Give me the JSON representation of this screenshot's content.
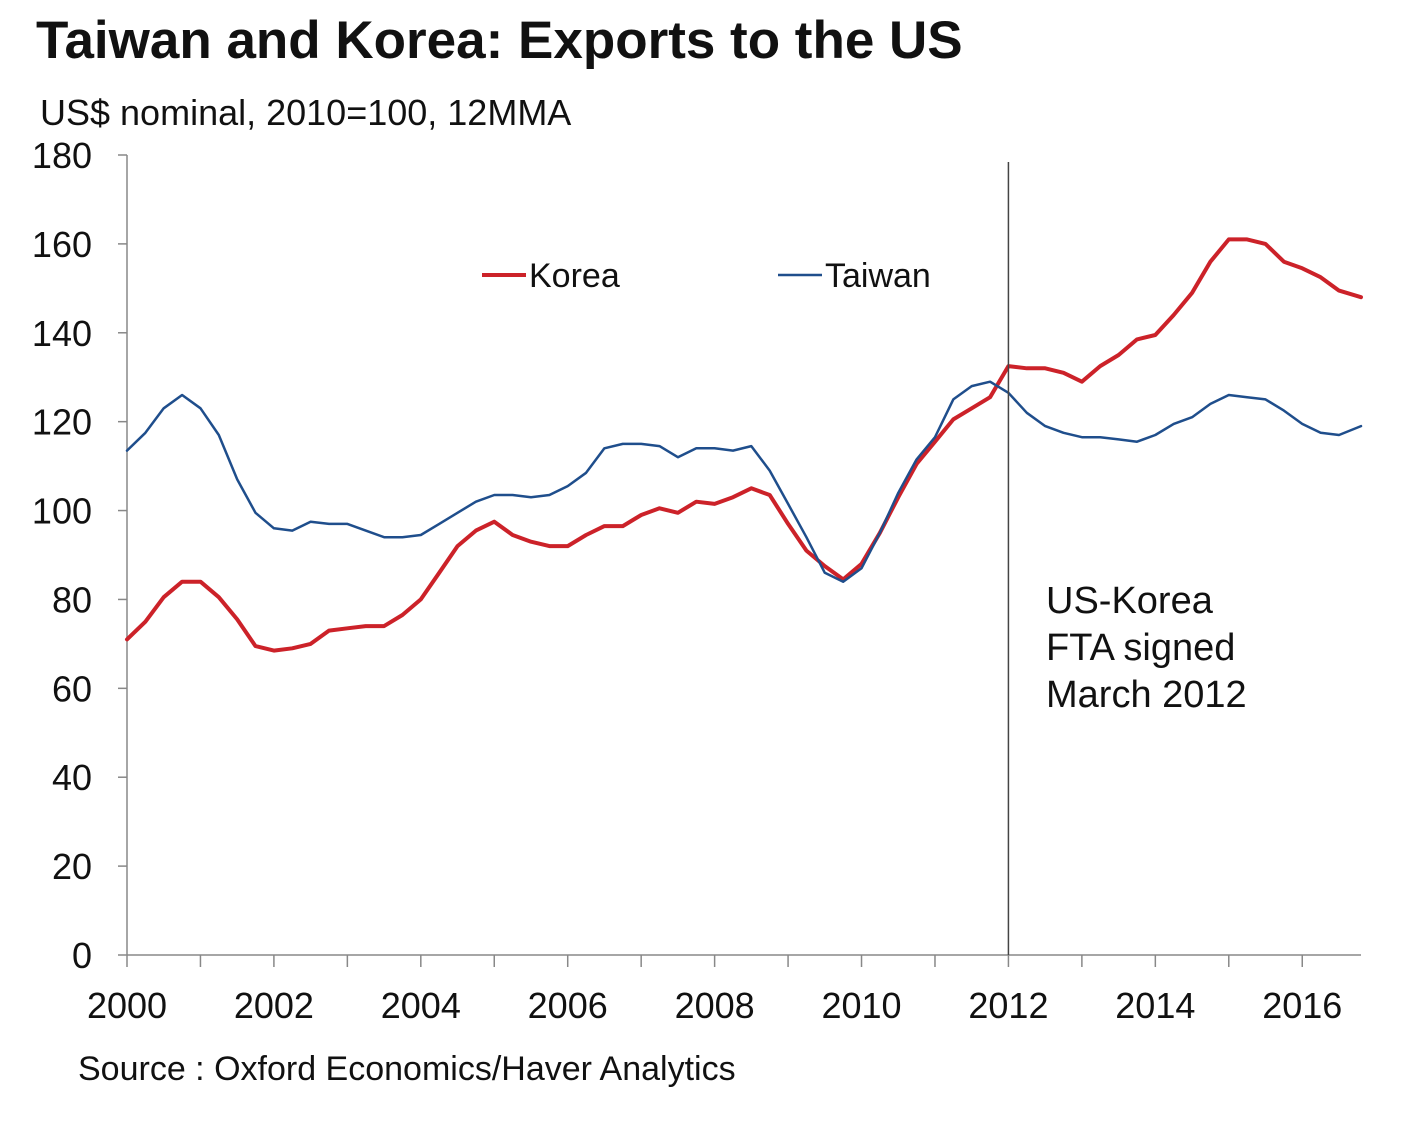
{
  "chart_data": {
    "type": "line",
    "title": "Taiwan and Korea: Exports to the US",
    "subtitle": "US$ nominal, 2010=100, 12MMA",
    "source": "Source : Oxford Economics/Haver Analytics",
    "xlim": [
      2000,
      2016.8
    ],
    "ylim": [
      0,
      180
    ],
    "yticks": [
      0,
      20,
      40,
      60,
      80,
      100,
      120,
      140,
      160,
      180
    ],
    "xtick_labels": [
      "2000",
      "2002",
      "2004",
      "2006",
      "2008",
      "2010",
      "2012",
      "2014",
      "2016"
    ],
    "xtick_values": [
      2000,
      2002,
      2004,
      2006,
      2008,
      2010,
      2012,
      2014,
      2016
    ],
    "minor_xticks": [
      2001,
      2003,
      2005,
      2007,
      2009,
      2011,
      2013,
      2015
    ],
    "grid": false,
    "legend_position": "top",
    "series": [
      {
        "name": "Korea",
        "color": "#cc2229",
        "points": [
          [
            2000.0,
            71
          ],
          [
            2000.25,
            75
          ],
          [
            2000.5,
            80.5
          ],
          [
            2000.75,
            84
          ],
          [
            2001.0,
            84
          ],
          [
            2001.25,
            80.5
          ],
          [
            2001.5,
            75.5
          ],
          [
            2001.75,
            69.5
          ],
          [
            2002.0,
            68.5
          ],
          [
            2002.25,
            69
          ],
          [
            2002.5,
            70
          ],
          [
            2002.75,
            73
          ],
          [
            2003.0,
            73.5
          ],
          [
            2003.25,
            74
          ],
          [
            2003.5,
            74
          ],
          [
            2003.75,
            76.5
          ],
          [
            2004.0,
            80
          ],
          [
            2004.25,
            86
          ],
          [
            2004.5,
            92
          ],
          [
            2004.75,
            95.5
          ],
          [
            2005.0,
            97.5
          ],
          [
            2005.25,
            94.5
          ],
          [
            2005.5,
            93
          ],
          [
            2005.75,
            92
          ],
          [
            2006.0,
            92
          ],
          [
            2006.25,
            94.5
          ],
          [
            2006.5,
            96.5
          ],
          [
            2006.75,
            96.5
          ],
          [
            2007.0,
            99
          ],
          [
            2007.25,
            100.5
          ],
          [
            2007.5,
            99.5
          ],
          [
            2007.75,
            102
          ],
          [
            2008.0,
            101.5
          ],
          [
            2008.25,
            103
          ],
          [
            2008.5,
            105
          ],
          [
            2008.75,
            103.5
          ],
          [
            2009.0,
            97
          ],
          [
            2009.25,
            91
          ],
          [
            2009.5,
            87.5
          ],
          [
            2009.75,
            84.5
          ],
          [
            2010.0,
            88
          ],
          [
            2010.25,
            95
          ],
          [
            2010.5,
            103
          ],
          [
            2010.75,
            110.5
          ],
          [
            2011.0,
            115.5
          ],
          [
            2011.25,
            120.5
          ],
          [
            2011.5,
            123
          ],
          [
            2011.75,
            125.5
          ],
          [
            2012.0,
            132.5
          ],
          [
            2012.25,
            132
          ],
          [
            2012.5,
            132
          ],
          [
            2012.75,
            131
          ],
          [
            2013.0,
            129
          ],
          [
            2013.25,
            132.5
          ],
          [
            2013.5,
            135
          ],
          [
            2013.75,
            138.5
          ],
          [
            2014.0,
            139.5
          ],
          [
            2014.25,
            144
          ],
          [
            2014.5,
            149
          ],
          [
            2014.75,
            156
          ],
          [
            2015.0,
            161
          ],
          [
            2015.25,
            161
          ],
          [
            2015.5,
            160
          ],
          [
            2015.75,
            156
          ],
          [
            2016.0,
            154.5
          ],
          [
            2016.25,
            152.5
          ],
          [
            2016.5,
            149.5
          ],
          [
            2016.8,
            148
          ]
        ]
      },
      {
        "name": "Taiwan",
        "color": "#1f4e8c",
        "points": [
          [
            2000.0,
            113.5
          ],
          [
            2000.25,
            117.5
          ],
          [
            2000.5,
            123
          ],
          [
            2000.75,
            126
          ],
          [
            2001.0,
            123
          ],
          [
            2001.25,
            117
          ],
          [
            2001.5,
            107
          ],
          [
            2001.75,
            99.5
          ],
          [
            2002.0,
            96
          ],
          [
            2002.25,
            95.5
          ],
          [
            2002.5,
            97.5
          ],
          [
            2002.75,
            97
          ],
          [
            2003.0,
            97
          ],
          [
            2003.25,
            95.5
          ],
          [
            2003.5,
            94
          ],
          [
            2003.75,
            94
          ],
          [
            2004.0,
            94.5
          ],
          [
            2004.25,
            97
          ],
          [
            2004.5,
            99.5
          ],
          [
            2004.75,
            102
          ],
          [
            2005.0,
            103.5
          ],
          [
            2005.25,
            103.5
          ],
          [
            2005.5,
            103
          ],
          [
            2005.75,
            103.5
          ],
          [
            2006.0,
            105.5
          ],
          [
            2006.25,
            108.5
          ],
          [
            2006.5,
            114
          ],
          [
            2006.75,
            115
          ],
          [
            2007.0,
            115
          ],
          [
            2007.25,
            114.5
          ],
          [
            2007.5,
            112
          ],
          [
            2007.75,
            114
          ],
          [
            2008.0,
            114
          ],
          [
            2008.25,
            113.5
          ],
          [
            2008.5,
            114.5
          ],
          [
            2008.75,
            109
          ],
          [
            2009.0,
            101.5
          ],
          [
            2009.25,
            94
          ],
          [
            2009.5,
            86
          ],
          [
            2009.75,
            84
          ],
          [
            2010.0,
            87
          ],
          [
            2010.25,
            95
          ],
          [
            2010.5,
            104
          ],
          [
            2010.75,
            111.5
          ],
          [
            2011.0,
            116.5
          ],
          [
            2011.25,
            125
          ],
          [
            2011.5,
            128
          ],
          [
            2011.75,
            129
          ],
          [
            2012.0,
            126.5
          ],
          [
            2012.25,
            122
          ],
          [
            2012.5,
            119
          ],
          [
            2012.75,
            117.5
          ],
          [
            2013.0,
            116.5
          ],
          [
            2013.25,
            116.5
          ],
          [
            2013.5,
            116
          ],
          [
            2013.75,
            115.5
          ],
          [
            2014.0,
            117
          ],
          [
            2014.25,
            119.5
          ],
          [
            2014.5,
            121
          ],
          [
            2014.75,
            124
          ],
          [
            2015.0,
            126
          ],
          [
            2015.25,
            125.5
          ],
          [
            2015.5,
            125
          ],
          [
            2015.75,
            122.5
          ],
          [
            2016.0,
            119.5
          ],
          [
            2016.25,
            117.5
          ],
          [
            2016.5,
            117
          ],
          [
            2016.8,
            119
          ]
        ]
      }
    ],
    "annotation": {
      "x": 2012.0,
      "lines": [
        "US-Korea",
        "FTA signed",
        "March 2012"
      ]
    }
  }
}
